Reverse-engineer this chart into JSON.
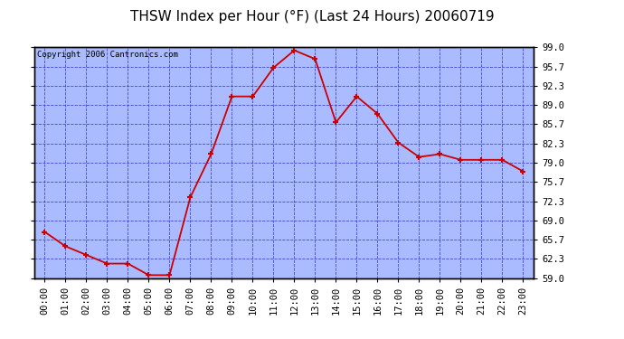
{
  "title": "THSW Index per Hour (°F) (Last 24 Hours) 20060719",
  "copyright": "Copyright 2006 Cantronics.com",
  "hours": [
    0,
    1,
    2,
    3,
    4,
    5,
    6,
    7,
    8,
    9,
    10,
    11,
    12,
    13,
    14,
    15,
    16,
    17,
    18,
    19,
    20,
    21,
    22,
    23
  ],
  "values": [
    67.0,
    64.5,
    63.0,
    61.5,
    61.5,
    59.5,
    59.5,
    73.0,
    80.5,
    90.5,
    90.5,
    95.5,
    98.5,
    97.0,
    86.0,
    90.5,
    87.5,
    82.5,
    80.0,
    80.5,
    79.5,
    79.5,
    79.5,
    77.5
  ],
  "x_labels": [
    "00:00",
    "01:00",
    "02:00",
    "03:00",
    "04:00",
    "05:00",
    "06:00",
    "07:00",
    "08:00",
    "09:00",
    "10:00",
    "11:00",
    "12:00",
    "13:00",
    "14:00",
    "15:00",
    "16:00",
    "17:00",
    "18:00",
    "19:00",
    "20:00",
    "21:00",
    "22:00",
    "23:00"
  ],
  "y_ticks": [
    59.0,
    62.3,
    65.7,
    69.0,
    72.3,
    75.7,
    79.0,
    82.3,
    85.7,
    89.0,
    92.3,
    95.7,
    99.0
  ],
  "y_tick_labels": [
    "59.0",
    "62.3",
    "65.7",
    "69.0",
    "72.3",
    "75.7",
    "79.0",
    "82.3",
    "85.7",
    "89.0",
    "92.3",
    "95.7",
    "99.0"
  ],
  "ylim": [
    59.0,
    99.0
  ],
  "line_color": "#cc0000",
  "marker_color": "#cc0000",
  "bg_color": "#aabbff",
  "outer_bg": "#ffffff",
  "grid_color": "#3333cc",
  "title_fontsize": 11,
  "tick_fontsize": 7.5,
  "copyright_fontsize": 6.5
}
